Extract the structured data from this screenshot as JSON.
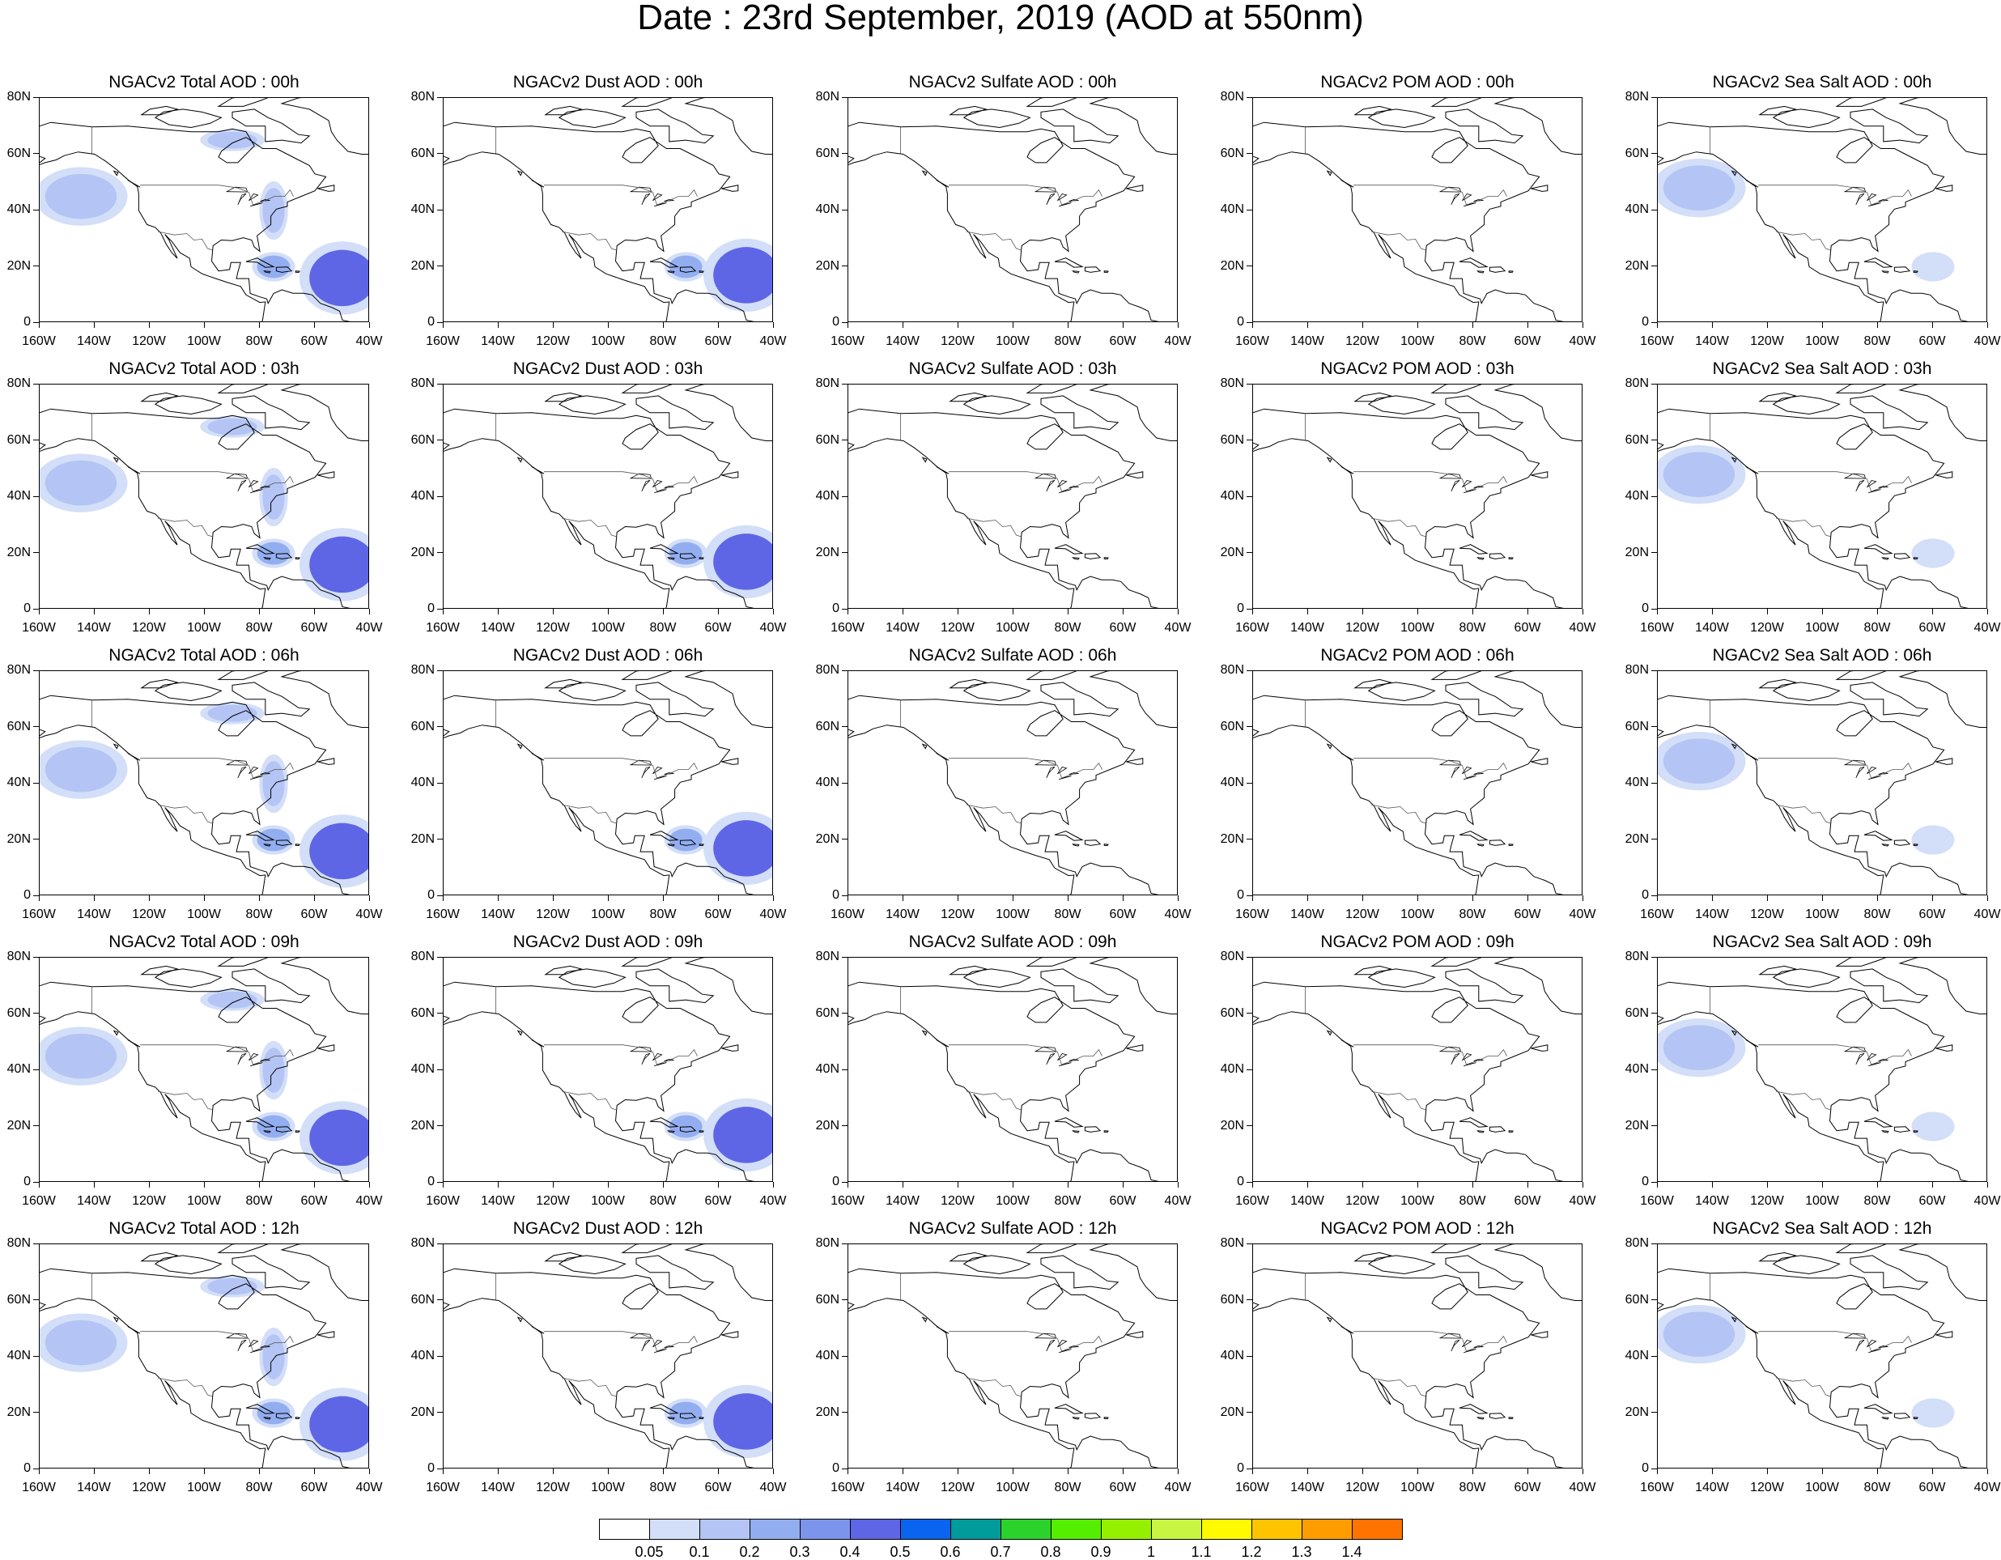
{
  "title": "Date : 23rd September, 2019 (AOD at 550nm)",
  "x_ticks": [
    "160W",
    "140W",
    "120W",
    "100W",
    "80W",
    "60W",
    "40W"
  ],
  "y_ticks": [
    "0",
    "20N",
    "40N",
    "60N",
    "80N"
  ],
  "map_extent": {
    "lon": [
      -160,
      -40
    ],
    "lat": [
      0,
      80
    ]
  },
  "rows": [
    {
      "hour": "00h",
      "titles": [
        "NGACv2 Total AOD : 00h",
        "NGACv2 Dust AOD : 00h",
        "NGACv2 Sulfate AOD : 00h",
        "NGACv2 POM AOD : 00h",
        "NGACv2 Sea Salt AOD : 00h"
      ]
    },
    {
      "hour": "03h",
      "titles": [
        "NGACv2 Total AOD : 03h",
        "NGACv2 Dust AOD : 03h",
        "NGACv2 Sulfate AOD : 03h",
        "NGACv2 POM AOD : 03h",
        "NGACv2 Sea Salt AOD : 03h"
      ]
    },
    {
      "hour": "06h",
      "titles": [
        "NGACv2 Total AOD : 06h",
        "NGACv2 Dust AOD : 06h",
        "NGACv2 Sulfate AOD : 06h",
        "NGACv2 POM AOD : 06h",
        "NGACv2 Sea Salt AOD : 06h"
      ]
    },
    {
      "hour": "09h",
      "titles": [
        "NGACv2 Total AOD : 09h",
        "NGACv2 Dust AOD : 09h",
        "NGACv2 Sulfate AOD : 09h",
        "NGACv2 POM AOD : 09h",
        "NGACv2 Sea Salt  AOD : 09h"
      ]
    },
    {
      "hour": "12h",
      "titles": [
        "NGACv2 Total AOD  : 12h",
        "NGACv2 Dust AOD : 12h",
        "NGACv2 Sulfate AOD : 12h",
        "NGACv2 POM  AOD : 12h",
        "NGACv2 Sea Salt  AOD : 12h"
      ]
    }
  ],
  "species": [
    "total",
    "dust",
    "sulfate",
    "pom",
    "seasalt"
  ],
  "aod_features": {
    "total": [
      {
        "name": "pacific-swirl",
        "lon": -145,
        "lat": 45,
        "aod": 0.1
      },
      {
        "name": "atlantic-dust-plume",
        "lon": -50,
        "lat": 16,
        "aod": 0.4
      },
      {
        "name": "caribbean",
        "lon": -75,
        "lat": 20,
        "aod": 0.2
      },
      {
        "name": "east-coast",
        "lon": -75,
        "lat": 40,
        "aod": 0.1
      },
      {
        "name": "hudson-bay",
        "lon": -90,
        "lat": 65,
        "aod": 0.1
      }
    ],
    "dust": [
      {
        "name": "atlantic-dust-plume",
        "lon": -50,
        "lat": 17,
        "aod": 0.4
      },
      {
        "name": "caribbean",
        "lon": -72,
        "lat": 20,
        "aod": 0.2
      }
    ],
    "sulfate": [],
    "pom": [],
    "seasalt": [
      {
        "name": "pacific-swirl",
        "lon": -145,
        "lat": 48,
        "aod": 0.1
      },
      {
        "name": "tropical-atlantic",
        "lon": -60,
        "lat": 20,
        "aod": 0.05
      }
    ]
  },
  "colorbar": {
    "labels": [
      "0.05",
      "0.1",
      "0.2",
      "0.3",
      "0.4",
      "0.5",
      "0.6",
      "0.7",
      "0.8",
      "0.9",
      "1",
      "1.1",
      "1.2",
      "1.3",
      "1.4"
    ],
    "colors": [
      "#ffffff",
      "#d3def8",
      "#b4c4f4",
      "#93aef0",
      "#7d94ec",
      "#5e66e6",
      "#0a64f0",
      "#009b9b",
      "#2cd22c",
      "#55ee00",
      "#95f000",
      "#c8f542",
      "#fffa00",
      "#ffc400",
      "#ff9c00",
      "#ff7400",
      "#ff2d14"
    ]
  }
}
